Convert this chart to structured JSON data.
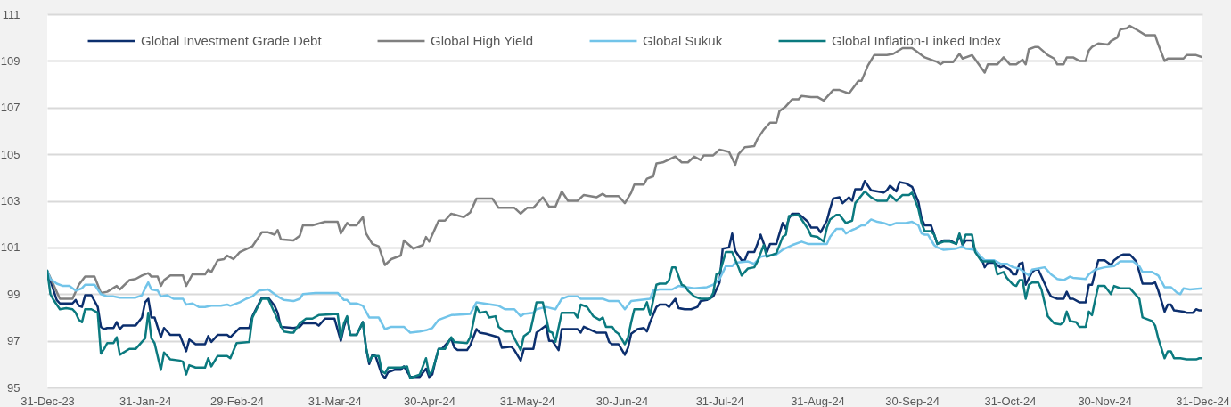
{
  "chart_data": {
    "type": "line",
    "xlim": [
      "2023-12-31",
      "2024-12-31"
    ],
    "xticks": [
      {
        "value": "2023-12-31",
        "label": "31-Dec-23"
      },
      {
        "value": "2024-01-31",
        "label": "31-Jan-24"
      },
      {
        "value": "2024-02-29",
        "label": "29-Feb-24"
      },
      {
        "value": "2024-03-31",
        "label": "31-Mar-24"
      },
      {
        "value": "2024-04-30",
        "label": "30-Apr-24"
      },
      {
        "value": "2024-05-31",
        "label": "31-May-24"
      },
      {
        "value": "2024-06-30",
        "label": "30-Jun-24"
      },
      {
        "value": "2024-07-31",
        "label": "31-Jul-24"
      },
      {
        "value": "2024-08-31",
        "label": "31-Aug-24"
      },
      {
        "value": "2024-09-30",
        "label": "30-Sep-24"
      },
      {
        "value": "2024-10-31",
        "label": "31-Oct-24"
      },
      {
        "value": "2024-11-30",
        "label": "30-Nov-24"
      },
      {
        "value": "2024-12-31",
        "label": "31-Dec-24"
      }
    ],
    "ylim": [
      95,
      111
    ],
    "yticks": [
      95,
      97,
      99,
      101,
      103,
      105,
      107,
      109,
      111
    ],
    "grid": "y",
    "legend": "top",
    "line_style": "solid",
    "series": [
      {
        "name": "Global Investment Grade Debt",
        "color": "#0c2f6e",
        "x": [
          "2023-12-31",
          "2024-01-03",
          "2024-01-04",
          "2024-01-08",
          "2024-01-09",
          "2024-01-10",
          "2024-01-11",
          "2024-01-12",
          "2024-01-14",
          "2024-01-16",
          "2024-01-17",
          "2024-01-18",
          "2024-01-19",
          "2024-01-21",
          "2024-01-22",
          "2024-01-23",
          "2024-01-24",
          "2024-01-28",
          "2024-01-30",
          "2024-01-31",
          "2024-02-01",
          "2024-02-02",
          "2024-02-03",
          "2024-02-05",
          "2024-02-06",
          "2024-02-08",
          "2024-02-11",
          "2024-02-13",
          "2024-02-14",
          "2024-02-16",
          "2024-02-19",
          "2024-02-20",
          "2024-02-21",
          "2024-02-23",
          "2024-02-26",
          "2024-02-27",
          "2024-03-01",
          "2024-03-04",
          "2024-03-05",
          "2024-03-08",
          "2024-03-10",
          "2024-03-12",
          "2024-03-13",
          "2024-03-14",
          "2024-03-18",
          "2024-03-20",
          "2024-03-21",
          "2024-03-25",
          "2024-03-26",
          "2024-03-28",
          "2024-03-31",
          "2024-04-02",
          "2024-04-03",
          "2024-04-04",
          "2024-04-05",
          "2024-04-07",
          "2024-04-09",
          "2024-04-10",
          "2024-04-11",
          "2024-04-12",
          "2024-04-13",
          "2024-04-15",
          "2024-04-16",
          "2024-04-17",
          "2024-04-19",
          "2024-04-21",
          "2024-04-22",
          "2024-04-24",
          "2024-04-27",
          "2024-04-29",
          "2024-04-30",
          "2024-05-01",
          "2024-05-02",
          "2024-05-03",
          "2024-05-04",
          "2024-05-07",
          "2024-05-08",
          "2024-05-09",
          "2024-05-12",
          "2024-05-13",
          "2024-05-15",
          "2024-05-16",
          "2024-05-18",
          "2024-05-22",
          "2024-05-23",
          "2024-05-26",
          "2024-05-27",
          "2024-05-29",
          "2024-05-30",
          "2024-06-02",
          "2024-06-03",
          "2024-06-06",
          "2024-06-07",
          "2024-06-08",
          "2024-06-10",
          "2024-06-11",
          "2024-06-16",
          "2024-06-17",
          "2024-06-18",
          "2024-06-22",
          "2024-06-25",
          "2024-06-26",
          "2024-06-27",
          "2024-06-29",
          "2024-07-01",
          "2024-07-02",
          "2024-07-03",
          "2024-07-05",
          "2024-07-07",
          "2024-07-08",
          "2024-07-09",
          "2024-07-11",
          "2024-07-12",
          "2024-07-14",
          "2024-07-15",
          "2024-07-17",
          "2024-07-18",
          "2024-07-20",
          "2024-07-22",
          "2024-07-24",
          "2024-07-25",
          "2024-07-27",
          "2024-07-29",
          "2024-07-31",
          "2024-08-01",
          "2024-08-03",
          "2024-08-04",
          "2024-08-05",
          "2024-08-07",
          "2024-08-08",
          "2024-08-09",
          "2024-08-11",
          "2024-08-12",
          "2024-08-13",
          "2024-08-15",
          "2024-08-16",
          "2024-08-18",
          "2024-08-19",
          "2024-08-20",
          "2024-08-21",
          "2024-08-22",
          "2024-08-23",
          "2024-08-25",
          "2024-08-28",
          "2024-08-29",
          "2024-08-31",
          "2024-09-01",
          "2024-09-03",
          "2024-09-04",
          "2024-09-05",
          "2024-09-07",
          "2024-09-08",
          "2024-09-10",
          "2024-09-11",
          "2024-09-12",
          "2024-09-14",
          "2024-09-15",
          "2024-09-17",
          "2024-09-19",
          "2024-09-21",
          "2024-09-22",
          "2024-09-23",
          "2024-09-25",
          "2024-09-26",
          "2024-09-28",
          "2024-09-30",
          "2024-10-02",
          "2024-10-03",
          "2024-10-04",
          "2024-10-06",
          "2024-10-07",
          "2024-10-08",
          "2024-10-10",
          "2024-10-12",
          "2024-10-14",
          "2024-10-15",
          "2024-10-16",
          "2024-10-17",
          "2024-10-19",
          "2024-10-20",
          "2024-10-22",
          "2024-10-23",
          "2024-10-24",
          "2024-10-26",
          "2024-10-28",
          "2024-10-29",
          "2024-10-31",
          "2024-11-01",
          "2024-11-02",
          "2024-11-03",
          "2024-11-04",
          "2024-11-05",
          "2024-11-07",
          "2024-11-08",
          "2024-11-09",
          "2024-11-10",
          "2024-11-12",
          "2024-11-13",
          "2024-11-15",
          "2024-11-17",
          "2024-11-18",
          "2024-11-19",
          "2024-11-20",
          "2024-11-22",
          "2024-11-24",
          "2024-11-25",
          "2024-11-26",
          "2024-11-27",
          "2024-11-28",
          "2024-11-30",
          "2024-12-02",
          "2024-12-03",
          "2024-12-05",
          "2024-12-06",
          "2024-12-08",
          "2024-12-10",
          "2024-12-11",
          "2024-12-12",
          "2024-12-15",
          "2024-12-16",
          "2024-12-17",
          "2024-12-19",
          "2024-12-20",
          "2024-12-21",
          "2024-12-22",
          "2024-12-25",
          "2024-12-26",
          "2024-12-28",
          "2024-12-29",
          "2024-12-30",
          "2024-12-31"
        ],
        "values": [
          100,
          98.75,
          98.6,
          98.6,
          98.75,
          98.5,
          98.45,
          98.95,
          98.95,
          98.45,
          97.6,
          97.5,
          97.55,
          97.55,
          97.8,
          97.5,
          97.65,
          97.65,
          98.0,
          98.65,
          98.8,
          98.0,
          98.0,
          97.15,
          97.55,
          97.25,
          97.25,
          96.55,
          97.05,
          96.85,
          96.85,
          97.2,
          96.95,
          97.25,
          97.25,
          97.15,
          97.55,
          97.55,
          98.05,
          98.85,
          98.85,
          98.5,
          98.2,
          97.6,
          97.55,
          97.6,
          97.75,
          97.75,
          97.65,
          97.95,
          97.95,
          97.0,
          97.6,
          98.0,
          97.25,
          97.25,
          97.8,
          96.7,
          96.0,
          96.4,
          96.35,
          95.55,
          95.4,
          95.65,
          95.75,
          95.75,
          95.9,
          95.45,
          95.45,
          95.8,
          95.45,
          95.55,
          96.15,
          96.65,
          96.65,
          97.1,
          96.7,
          96.6,
          96.6,
          96.8,
          97.5,
          97.35,
          97.3,
          97.15,
          96.7,
          96.75,
          96.6,
          96.15,
          96.65,
          96.65,
          97.35,
          97.65,
          97.0,
          97.0,
          96.6,
          97.5,
          97.5,
          97.35,
          97.6,
          97.35,
          97.35,
          96.95,
          96.85,
          96.85,
          96.4,
          96.7,
          97.3,
          97.5,
          97.55,
          97.4,
          97.8,
          98.45,
          98.55,
          98.55,
          98.45,
          98.8,
          98.4,
          98.35,
          98.35,
          98.45,
          98.7,
          98.75,
          98.9,
          99.5,
          100.95,
          101.0,
          101.6,
          100.85,
          100.45,
          100.45,
          100.8,
          100.8,
          101.15,
          101.55,
          100.8,
          101.15,
          101.15,
          101.6,
          102.05,
          101.8,
          102.25,
          102.45,
          102.45,
          102.1,
          101.85,
          101.85,
          101.65,
          102.15,
          102.65,
          103.1,
          103.15,
          102.9,
          103.15,
          103.0,
          103.5,
          103.5,
          103.85,
          103.45,
          103.4,
          103.35,
          103.45,
          103.65,
          103.4,
          103.8,
          103.75,
          103.6,
          102.95,
          102.25,
          101.95,
          101.95,
          101.55,
          101.15,
          101.3,
          101.3,
          101.15,
          101.55,
          101.1,
          101.3,
          101.3,
          100.85,
          100.55,
          100.15,
          100.35,
          100.35,
          100.15,
          100.2,
          100.05,
          99.85,
          99.85,
          100.3,
          100.35,
          99.4,
          99.95,
          100.05,
          100.05,
          99.75,
          99.15,
          98.9,
          98.8,
          98.8,
          99.1,
          98.8,
          98.8,
          98.65,
          98.65,
          99.4,
          99.4,
          99.95,
          100.45,
          100.45,
          100.25,
          100.45,
          100.65,
          100.7,
          100.7,
          100.4,
          99.95,
          99.45,
          99.45,
          99.5,
          99.15,
          98.25,
          98.55,
          98.55,
          98.3,
          98.25,
          98.2,
          98.2,
          98.35,
          98.3,
          98.3
        ]
      },
      {
        "name": "Global High Yield",
        "color": "#808080",
        "x": [
          "2023-12-31",
          "2024-01-04",
          "2024-01-08",
          "2024-01-10",
          "2024-01-12",
          "2024-01-15",
          "2024-01-17",
          "2024-01-19",
          "2024-01-22",
          "2024-01-23",
          "2024-01-26",
          "2024-01-28",
          "2024-01-30",
          "2024-02-01",
          "2024-02-02",
          "2024-02-04",
          "2024-02-05",
          "2024-02-06",
          "2024-02-08",
          "2024-02-12",
          "2024-02-13",
          "2024-02-15",
          "2024-02-19",
          "2024-02-20",
          "2024-02-21",
          "2024-02-23",
          "2024-02-25",
          "2024-02-26",
          "2024-02-28",
          "2024-03-01",
          "2024-03-05",
          "2024-03-08",
          "2024-03-10",
          "2024-03-12",
          "2024-03-13",
          "2024-03-14",
          "2024-03-18",
          "2024-03-20",
          "2024-03-21",
          "2024-03-24",
          "2024-03-28",
          "2024-04-01",
          "2024-04-02",
          "2024-04-04",
          "2024-04-05",
          "2024-04-07",
          "2024-04-09",
          "2024-04-10",
          "2024-04-12",
          "2024-04-14",
          "2024-04-16",
          "2024-04-18",
          "2024-04-21",
          "2024-04-22",
          "2024-04-25",
          "2024-04-28",
          "2024-04-29",
          "2024-04-30",
          "2024-05-01",
          "2024-05-03",
          "2024-05-05",
          "2024-05-07",
          "2024-05-11",
          "2024-05-13",
          "2024-05-15",
          "2024-05-20",
          "2024-05-22",
          "2024-05-27",
          "2024-05-29",
          "2024-05-31",
          "2024-06-02",
          "2024-06-04",
          "2024-06-05",
          "2024-06-07",
          "2024-06-09",
          "2024-06-11",
          "2024-06-13",
          "2024-06-16",
          "2024-06-18",
          "2024-06-22",
          "2024-06-24",
          "2024-06-25",
          "2024-06-29",
          "2024-07-01",
          "2024-07-03",
          "2024-07-04",
          "2024-07-07",
          "2024-07-08",
          "2024-07-10",
          "2024-07-11",
          "2024-07-13",
          "2024-07-17",
          "2024-07-19",
          "2024-07-21",
          "2024-07-23",
          "2024-07-25",
          "2024-07-26",
          "2024-07-29",
          "2024-07-31",
          "2024-08-03",
          "2024-08-05",
          "2024-08-06",
          "2024-08-08",
          "2024-08-11",
          "2024-08-12",
          "2024-08-14",
          "2024-08-16",
          "2024-08-18",
          "2024-08-19",
          "2024-08-21",
          "2024-08-23",
          "2024-08-25",
          "2024-08-26",
          "2024-08-29",
          "2024-08-31",
          "2024-09-02",
          "2024-09-05",
          "2024-09-07",
          "2024-09-10",
          "2024-09-13",
          "2024-09-14",
          "2024-09-16",
          "2024-09-18",
          "2024-09-22",
          "2024-09-24",
          "2024-09-27",
          "2024-09-30",
          "2024-10-01",
          "2024-10-04",
          "2024-10-08",
          "2024-10-09",
          "2024-10-10",
          "2024-10-13",
          "2024-10-15",
          "2024-10-16",
          "2024-10-19",
          "2024-10-23",
          "2024-10-24",
          "2024-10-27",
          "2024-10-29",
          "2024-10-31",
          "2024-11-02",
          "2024-11-04",
          "2024-11-05",
          "2024-11-06",
          "2024-11-08",
          "2024-11-09",
          "2024-11-12",
          "2024-11-14",
          "2024-11-15",
          "2024-11-17",
          "2024-11-18",
          "2024-11-20",
          "2024-11-22",
          "2024-11-24",
          "2024-11-25",
          "2024-11-26",
          "2024-11-28",
          "2024-12-01",
          "2024-12-02",
          "2024-12-04",
          "2024-12-05",
          "2024-12-07",
          "2024-12-08",
          "2024-12-10",
          "2024-12-13",
          "2024-12-16",
          "2024-12-17",
          "2024-12-19",
          "2024-12-20",
          "2024-12-22",
          "2024-12-25",
          "2024-12-26",
          "2024-12-29",
          "2024-12-31"
        ],
        "values": [
          100,
          98.8,
          98.8,
          99.4,
          99.75,
          99.75,
          99.05,
          99.1,
          99.35,
          99.2,
          99.6,
          99.65,
          99.8,
          99.9,
          99.75,
          99.75,
          99.35,
          99.6,
          99.8,
          99.8,
          99.35,
          99.85,
          99.85,
          100.05,
          99.95,
          100.45,
          100.5,
          100.65,
          100.5,
          100.8,
          101.05,
          101.65,
          101.65,
          101.55,
          101.75,
          101.35,
          101.3,
          101.5,
          101.95,
          101.95,
          102.1,
          102.1,
          101.6,
          102.05,
          101.95,
          101.95,
          102.3,
          101.6,
          101.15,
          101.05,
          100.25,
          100.5,
          100.65,
          101.3,
          100.95,
          101.1,
          101.45,
          101.25,
          101.55,
          102.15,
          102.15,
          102.45,
          102.3,
          102.5,
          103.1,
          103.1,
          102.7,
          102.7,
          102.45,
          102.7,
          102.7,
          103.0,
          103.15,
          102.75,
          102.75,
          103.4,
          103.0,
          103.0,
          103.25,
          103.15,
          103.3,
          103.2,
          103.2,
          102.9,
          103.35,
          103.7,
          103.7,
          103.95,
          104.05,
          104.6,
          104.65,
          104.9,
          104.65,
          104.65,
          104.9,
          104.75,
          104.95,
          104.95,
          105.2,
          105.1,
          104.55,
          105.0,
          105.3,
          105.35,
          105.65,
          106.05,
          106.35,
          106.35,
          106.85,
          107.05,
          107.35,
          107.35,
          107.5,
          107.45,
          107.45,
          107.3,
          107.75,
          107.75,
          107.6,
          108.15,
          108.15,
          108.8,
          109.25,
          109.25,
          109.3,
          109.55,
          109.55,
          109.45,
          109.15,
          108.95,
          108.85,
          108.95,
          108.95,
          109.3,
          109.1,
          109.25,
          108.5,
          108.85,
          108.85,
          109.15,
          108.85,
          108.85,
          109.05,
          108.85,
          109.5,
          109.6,
          109.6,
          109.25,
          109.1,
          108.85,
          108.85,
          109.15,
          109.15,
          109.0,
          109.0,
          109.45,
          109.6,
          109.75,
          109.7,
          109.85,
          110.0,
          110.35,
          110.4,
          110.5,
          110.35,
          110.1,
          110.1,
          109.7,
          109.0,
          109.1,
          109.1,
          109.1,
          109.25,
          109.25,
          109.15
        ]
      },
      {
        "name": "Global Sukuk",
        "color": "#72c4e9",
        "x": [
          "2023-12-31",
          "2024-01-01",
          "2024-01-03",
          "2024-01-05",
          "2024-01-07",
          "2024-01-09",
          "2024-01-11",
          "2024-01-12",
          "2024-01-15",
          "2024-01-17",
          "2024-01-19",
          "2024-01-21",
          "2024-01-23",
          "2024-01-28",
          "2024-01-30",
          "2024-01-31",
          "2024-02-01",
          "2024-02-02",
          "2024-02-04",
          "2024-02-05",
          "2024-02-07",
          "2024-02-09",
          "2024-02-12",
          "2024-02-13",
          "2024-02-15",
          "2024-02-17",
          "2024-02-19",
          "2024-02-21",
          "2024-02-24",
          "2024-02-26",
          "2024-02-27",
          "2024-03-01",
          "2024-03-03",
          "2024-03-05",
          "2024-03-07",
          "2024-03-10",
          "2024-03-12",
          "2024-03-13",
          "2024-03-15",
          "2024-03-18",
          "2024-03-20",
          "2024-03-21",
          "2024-03-25",
          "2024-04-01",
          "2024-04-03",
          "2024-04-04",
          "2024-04-05",
          "2024-04-07",
          "2024-04-09",
          "2024-04-11",
          "2024-04-14",
          "2024-04-16",
          "2024-04-18",
          "2024-04-22",
          "2024-04-24",
          "2024-04-27",
          "2024-04-29",
          "2024-05-01",
          "2024-05-03",
          "2024-05-06",
          "2024-05-07",
          "2024-05-13",
          "2024-05-15",
          "2024-05-22",
          "2024-05-24",
          "2024-05-27",
          "2024-05-29",
          "2024-05-30",
          "2024-06-02",
          "2024-06-03",
          "2024-06-06",
          "2024-06-09",
          "2024-06-11",
          "2024-06-13",
          "2024-06-16",
          "2024-06-17",
          "2024-06-24",
          "2024-06-26",
          "2024-06-29",
          "2024-07-01",
          "2024-07-03",
          "2024-07-06",
          "2024-07-09",
          "2024-07-10",
          "2024-07-12",
          "2024-07-16",
          "2024-07-18",
          "2024-07-23",
          "2024-07-27",
          "2024-07-29",
          "2024-07-31",
          "2024-08-02",
          "2024-08-04",
          "2024-08-05",
          "2024-08-09",
          "2024-08-11",
          "2024-08-13",
          "2024-08-15",
          "2024-08-18",
          "2024-08-20",
          "2024-08-23",
          "2024-08-26",
          "2024-08-28",
          "2024-09-03",
          "2024-09-04",
          "2024-09-06",
          "2024-09-08",
          "2024-09-09",
          "2024-09-11",
          "2024-09-12",
          "2024-09-14",
          "2024-09-15",
          "2024-09-17",
          "2024-09-19",
          "2024-09-21",
          "2024-09-23",
          "2024-09-25",
          "2024-09-28",
          "2024-09-30",
          "2024-10-02",
          "2024-10-03",
          "2024-10-04",
          "2024-10-05",
          "2024-10-07",
          "2024-10-08",
          "2024-10-10",
          "2024-10-14",
          "2024-10-16",
          "2024-10-17",
          "2024-10-20",
          "2024-10-21",
          "2024-10-23",
          "2024-10-26",
          "2024-10-28",
          "2024-10-30",
          "2024-11-01",
          "2024-11-03",
          "2024-11-06",
          "2024-11-07",
          "2024-11-09",
          "2024-11-11",
          "2024-11-13",
          "2024-11-15",
          "2024-11-17",
          "2024-11-19",
          "2024-11-20",
          "2024-11-24",
          "2024-11-25",
          "2024-11-27",
          "2024-11-30",
          "2024-12-03",
          "2024-12-05",
          "2024-12-09",
          "2024-12-11",
          "2024-12-12",
          "2024-12-15",
          "2024-12-17",
          "2024-12-19",
          "2024-12-21",
          "2024-12-23",
          "2024-12-24",
          "2024-12-25",
          "2024-12-27",
          "2024-12-31"
        ],
        "values": [
          100,
          99.65,
          99.45,
          99.35,
          99.35,
          99.15,
          99.25,
          99.4,
          99.4,
          99.0,
          98.9,
          98.9,
          98.85,
          98.85,
          98.95,
          99.25,
          99.5,
          99.2,
          99.15,
          98.9,
          98.95,
          98.8,
          98.8,
          98.55,
          98.6,
          98.45,
          98.45,
          98.5,
          98.5,
          98.55,
          98.5,
          98.65,
          98.8,
          98.9,
          99.15,
          99.2,
          99.0,
          98.9,
          98.75,
          98.7,
          98.8,
          99.0,
          99.05,
          99.05,
          98.75,
          98.75,
          98.6,
          98.6,
          98.5,
          98.0,
          98.0,
          97.5,
          97.6,
          97.6,
          97.35,
          97.4,
          97.45,
          97.55,
          97.9,
          98.05,
          98.1,
          98.15,
          98.65,
          98.5,
          98.35,
          98.35,
          98.05,
          98.15,
          98.2,
          98.35,
          98.45,
          98.35,
          98.8,
          98.9,
          98.9,
          98.8,
          98.8,
          98.7,
          98.7,
          98.35,
          98.7,
          98.75,
          98.8,
          99.15,
          99.2,
          99.2,
          99.35,
          99.25,
          99.3,
          99.4,
          99.65,
          100.2,
          100.2,
          100.35,
          100.4,
          100.3,
          100.6,
          100.65,
          100.7,
          100.9,
          101.1,
          101.25,
          101.15,
          101.15,
          101.45,
          101.8,
          101.8,
          101.6,
          101.75,
          101.8,
          101.95,
          101.95,
          102.2,
          102.1,
          102.05,
          101.95,
          102.05,
          102.05,
          102.1,
          101.95,
          101.6,
          101.55,
          101.55,
          101.1,
          101.0,
          100.9,
          100.95,
          101.05,
          100.95,
          100.9,
          100.7,
          100.45,
          100.45,
          100.3,
          100.3,
          100.15,
          100.1,
          99.8,
          100.05,
          100.1,
          100.15,
          99.85,
          99.65,
          99.6,
          99.75,
          99.7,
          99.65,
          99.85,
          100.05,
          100.15,
          100.2,
          100.4,
          100.4,
          100.2,
          99.95,
          99.95,
          99.8,
          99.3,
          99.3,
          99.05,
          99.0,
          99.25,
          99.2,
          99.25
        ]
      },
      {
        "name": "Global Inflation-Linked Index",
        "color": "#0b7a7f",
        "x": [
          "2023-12-31",
          "2024-01-01",
          "2024-01-02",
          "2024-01-04",
          "2024-01-06",
          "2024-01-08",
          "2024-01-09",
          "2024-01-10",
          "2024-01-11",
          "2024-01-12",
          "2024-01-14",
          "2024-01-16",
          "2024-01-17",
          "2024-01-18",
          "2024-01-19",
          "2024-01-21",
          "2024-01-22",
          "2024-01-23",
          "2024-01-26",
          "2024-01-28",
          "2024-01-30",
          "2024-01-31",
          "2024-02-01",
          "2024-02-02",
          "2024-02-03",
          "2024-02-05",
          "2024-02-06",
          "2024-02-08",
          "2024-02-11",
          "2024-02-12",
          "2024-02-13",
          "2024-02-14",
          "2024-02-16",
          "2024-02-19",
          "2024-02-20",
          "2024-02-21",
          "2024-02-23",
          "2024-02-26",
          "2024-02-27",
          "2024-02-29",
          "2024-03-04",
          "2024-03-05",
          "2024-03-08",
          "2024-03-10",
          "2024-03-12",
          "2024-03-13",
          "2024-03-15",
          "2024-03-17",
          "2024-03-18",
          "2024-03-20",
          "2024-03-22",
          "2024-03-24",
          "2024-03-26",
          "2024-04-01",
          "2024-04-02",
          "2024-04-03",
          "2024-04-04",
          "2024-04-05",
          "2024-04-07",
          "2024-04-09",
          "2024-04-10",
          "2024-04-11",
          "2024-04-12",
          "2024-04-14",
          "2024-04-15",
          "2024-04-16",
          "2024-04-17",
          "2024-04-21",
          "2024-04-23",
          "2024-04-24",
          "2024-04-27",
          "2024-04-29",
          "2024-04-30",
          "2024-05-01",
          "2024-05-02",
          "2024-05-03",
          "2024-05-05",
          "2024-05-07",
          "2024-05-08",
          "2024-05-12",
          "2024-05-13",
          "2024-05-15",
          "2024-05-16",
          "2024-05-18",
          "2024-05-19",
          "2024-05-21",
          "2024-05-22",
          "2024-05-24",
          "2024-05-26",
          "2024-05-27",
          "2024-05-29",
          "2024-05-30",
          "2024-06-01",
          "2024-06-02",
          "2024-06-03",
          "2024-06-05",
          "2024-06-07",
          "2024-06-08",
          "2024-06-09",
          "2024-06-11",
          "2024-06-15",
          "2024-06-16",
          "2024-06-17",
          "2024-06-19",
          "2024-06-21",
          "2024-06-23",
          "2024-06-24",
          "2024-06-25",
          "2024-06-27",
          "2024-06-28",
          "2024-06-29",
          "2024-07-01",
          "2024-07-02",
          "2024-07-03",
          "2024-07-04",
          "2024-07-07",
          "2024-07-08",
          "2024-07-09",
          "2024-07-11",
          "2024-07-12",
          "2024-07-14",
          "2024-07-15",
          "2024-07-16",
          "2024-07-17",
          "2024-07-19",
          "2024-07-20",
          "2024-07-21",
          "2024-07-23",
          "2024-07-25",
          "2024-07-28",
          "2024-07-29",
          "2024-07-30",
          "2024-07-31",
          "2024-08-02",
          "2024-08-04",
          "2024-08-06",
          "2024-08-07",
          "2024-08-09",
          "2024-08-11",
          "2024-08-12",
          "2024-08-14",
          "2024-08-15",
          "2024-08-18",
          "2024-08-20",
          "2024-08-21",
          "2024-08-22",
          "2024-08-25",
          "2024-08-28",
          "2024-08-29",
          "2024-08-31",
          "2024-09-02",
          "2024-09-03",
          "2024-09-04",
          "2024-09-06",
          "2024-09-07",
          "2024-09-09",
          "2024-09-11",
          "2024-09-12",
          "2024-09-15",
          "2024-09-17",
          "2024-09-19",
          "2024-09-22",
          "2024-09-23",
          "2024-09-25",
          "2024-09-27",
          "2024-09-29",
          "2024-09-30",
          "2024-10-02",
          "2024-10-03",
          "2024-10-04",
          "2024-10-06",
          "2024-10-07",
          "2024-10-08",
          "2024-10-10",
          "2024-10-12",
          "2024-10-14",
          "2024-10-15",
          "2024-10-16",
          "2024-10-17",
          "2024-10-19",
          "2024-10-20",
          "2024-10-22",
          "2024-10-24",
          "2024-10-26",
          "2024-10-27",
          "2024-10-29",
          "2024-10-30",
          "2024-11-01",
          "2024-11-02",
          "2024-11-03",
          "2024-11-04",
          "2024-11-05",
          "2024-11-06",
          "2024-11-07",
          "2024-11-09",
          "2024-11-10",
          "2024-11-12",
          "2024-11-14",
          "2024-11-16",
          "2024-11-17",
          "2024-11-18",
          "2024-11-19",
          "2024-11-21",
          "2024-11-22",
          "2024-11-24",
          "2024-11-25",
          "2024-11-26",
          "2024-11-27",
          "2024-11-28",
          "2024-11-30",
          "2024-12-02",
          "2024-12-03",
          "2024-12-05",
          "2024-12-08",
          "2024-12-10",
          "2024-12-11",
          "2024-12-12",
          "2024-12-15",
          "2024-12-16",
          "2024-12-17",
          "2024-12-19",
          "2024-12-20",
          "2024-12-21",
          "2024-12-22",
          "2024-12-24",
          "2024-12-26",
          "2024-12-29",
          "2024-12-30",
          "2024-12-31"
        ],
        "values": [
          100,
          99.0,
          98.75,
          98.35,
          98.4,
          98.35,
          98.2,
          97.9,
          97.8,
          98.35,
          98.35,
          98.2,
          96.45,
          96.65,
          96.9,
          96.9,
          97.15,
          96.4,
          96.65,
          96.65,
          96.95,
          97.1,
          98.2,
          97.1,
          96.9,
          95.75,
          96.5,
          96.2,
          96.15,
          96.1,
          95.55,
          95.95,
          95.85,
          95.85,
          96.25,
          95.9,
          96.35,
          96.35,
          96.25,
          96.9,
          96.95,
          98.0,
          98.8,
          98.8,
          98.2,
          97.9,
          97.4,
          97.35,
          97.35,
          97.75,
          97.95,
          97.95,
          98.1,
          98.15,
          97.1,
          97.75,
          98.05,
          97.25,
          97.25,
          97.8,
          96.7,
          96.1,
          96.35,
          96.35,
          95.7,
          95.6,
          95.85,
          95.85,
          95.9,
          95.4,
          95.55,
          96.25,
          95.55,
          95.7,
          96.15,
          96.65,
          96.65,
          97.15,
          96.95,
          96.9,
          97.15,
          98.45,
          98.2,
          98.25,
          98.0,
          98.05,
          97.6,
          97.4,
          97.4,
          97.1,
          96.6,
          97.2,
          97.4,
          98.0,
          98.65,
          98.65,
          97.4,
          97.35,
          96.95,
          98.2,
          98.2,
          98.0,
          98.55,
          98.45,
          98.05,
          97.9,
          98.0,
          97.6,
          97.6,
          97.4,
          97.3,
          96.85,
          97.15,
          97.8,
          98.35,
          98.35,
          98.65,
          98.1,
          99.4,
          99.45,
          99.45,
          99.6,
          100.15,
          100.15,
          99.4,
          99.35,
          99.15,
          98.9,
          98.8,
          98.8,
          99.05,
          99.85,
          99.9,
          100.8,
          100.8,
          100.15,
          99.8,
          100.1,
          100.15,
          100.4,
          101.1,
          100.6,
          100.75,
          101.45,
          101.55,
          102.35,
          102.4,
          101.8,
          101.5,
          101.45,
          101.25,
          101.85,
          102.2,
          102.4,
          102.4,
          102.05,
          102.15,
          102.9,
          103.4,
          103.15,
          103.0,
          103.0,
          103.25,
          103.0,
          103.25,
          103.25,
          103.35,
          102.65,
          102.05,
          101.7,
          101.7,
          101.55,
          101.15,
          101.25,
          101.25,
          101.15,
          101.6,
          101.15,
          101.55,
          101.55,
          100.8,
          100.4,
          100.4,
          100.4,
          99.85,
          99.95,
          99.7,
          99.4,
          99.35,
          99.6,
          99.6,
          98.8,
          99.4,
          99.5,
          99.5,
          99.2,
          98.05,
          97.75,
          97.7,
          97.8,
          98.25,
          97.85,
          97.8,
          97.6,
          97.6,
          98.25,
          98.1,
          98.75,
          99.35,
          99.35,
          99.0,
          99.35,
          99.25,
          99.25,
          98.95,
          98.8,
          98.0,
          97.85,
          97.65,
          97.1,
          96.25,
          96.55,
          96.55,
          96.25,
          96.25,
          96.2,
          96.2,
          96.25,
          96.25
        ]
      }
    ]
  }
}
